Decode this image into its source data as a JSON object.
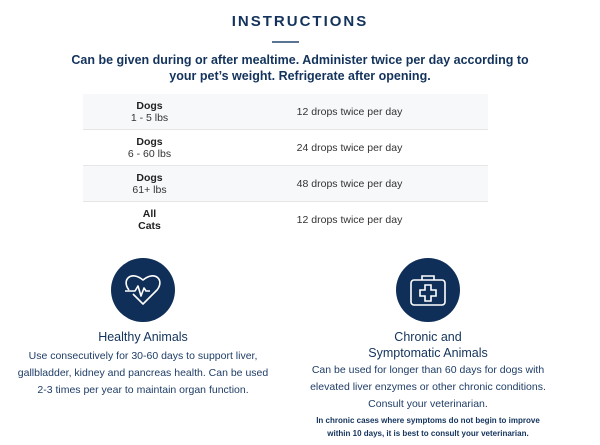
{
  "title": "INSTRUCTIONS",
  "intro": "Can be given during or after mealtime. Administer twice per day according to your pet’s weight. Refrigerate after opening.",
  "dosage_table": [
    {
      "animal": "Dogs",
      "weight": "1 - 5 lbs",
      "dose": "12 drops twice per day"
    },
    {
      "animal": "Dogs",
      "weight": "6 - 60 lbs",
      "dose": "24 drops twice per day"
    },
    {
      "animal": "Dogs",
      "weight": "61+ lbs",
      "dose": "48 drops twice per day"
    },
    {
      "animal": "All",
      "weight": "Cats",
      "dose": "12 drops twice per day"
    }
  ],
  "healthy": {
    "icon": "heart-pulse-icon",
    "heading": "Healthy Animals",
    "text": "Use consecutively for 30-60 days to support liver, gallbladder, kidney and pancreas health. Can be used 2-3 times per year to maintain organ function."
  },
  "chronic": {
    "icon": "first-aid-kit-icon",
    "heading_line1": "Chronic and",
    "heading_line2": "Symptomatic Animals",
    "text": "Can be used for longer than 60 days for dogs with elevated liver enzymes or other chronic conditions. Consult your veterinarian.",
    "note": "In chronic cases where symptoms do not begin to improve within 10 days, it is best to consult your veterinarian."
  },
  "colors": {
    "navy": "#0f2f59",
    "text": "#13335c"
  }
}
